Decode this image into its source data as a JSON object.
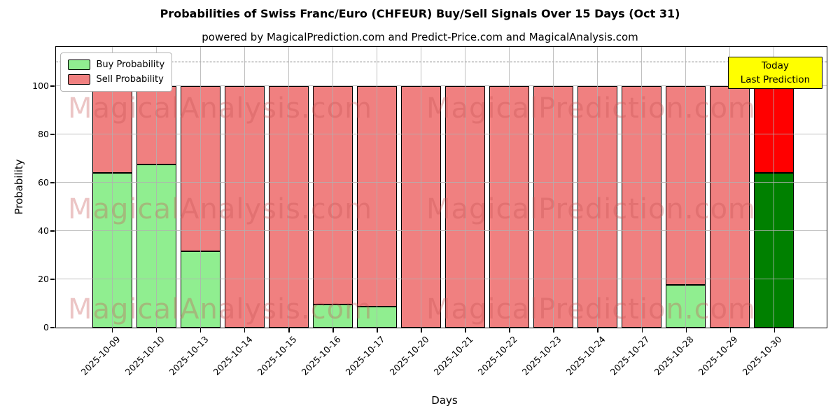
{
  "title": "Probabilities of Swiss Franc/Euro (CHFEUR) Buy/Sell Signals Over 15 Days (Oct 31)",
  "subtitle": "powered by MagicalPrediction.com and Predict-Price.com and MagicalAnalysis.com",
  "legend": {
    "items": [
      {
        "label": "Buy Probability",
        "color": "#90ee90"
      },
      {
        "label": "Sell Probability",
        "color": "#f08080"
      }
    ]
  },
  "annotation_box": {
    "line1": "Today",
    "line2": "Last Prediction",
    "bg": "#ffff00"
  },
  "watermarks": {
    "left": "MagicalAnalysis.com",
    "right": "MagicalPrediction.com"
  },
  "axes": {
    "xlabel": "Days",
    "ylabel": "Probability",
    "yticks": [
      0,
      20,
      40,
      60,
      80,
      100
    ],
    "ylim": [
      0,
      116
    ],
    "dashed_guide_y": 110,
    "grid": true
  },
  "colors": {
    "buy": "#90ee90",
    "sell": "#f08080",
    "today_buy": "#008000",
    "today_sell": "#ff0000",
    "grid": "#b0b0b0",
    "dashed_guide": "#7a7a7a",
    "bar_edge": "#000000",
    "annotation_bg": "#ffff00"
  },
  "chart_data": {
    "type": "bar",
    "stacked": true,
    "title": "Probabilities of Swiss Franc/Euro (CHFEUR) Buy/Sell Signals Over 15 Days (Oct 31)",
    "xlabel": "Days",
    "ylabel": "Probability",
    "ylim": [
      0,
      116
    ],
    "grid": true,
    "legend_position": "upper-left",
    "categories": [
      "2025-10-09",
      "2025-10-10",
      "2025-10-13",
      "2025-10-14",
      "2025-10-15",
      "2025-10-16",
      "2025-10-17",
      "2025-10-20",
      "2025-10-21",
      "2025-10-22",
      "2025-10-23",
      "2025-10-24",
      "2025-10-27",
      "2025-10-28",
      "2025-10-29",
      "2025-10-30"
    ],
    "series": [
      {
        "name": "Buy Probability",
        "values": [
          64,
          67.5,
          31.5,
          0,
          0,
          9.5,
          8.5,
          0,
          0,
          0,
          0,
          0,
          0,
          17.5,
          0,
          64
        ]
      },
      {
        "name": "Sell Probability",
        "values": [
          36,
          32.5,
          68.5,
          100,
          100,
          90.5,
          91.5,
          100,
          100,
          100,
          100,
          100,
          100,
          82.5,
          100,
          36
        ]
      }
    ],
    "today_index": 15,
    "dashed_guide_y": 110
  }
}
